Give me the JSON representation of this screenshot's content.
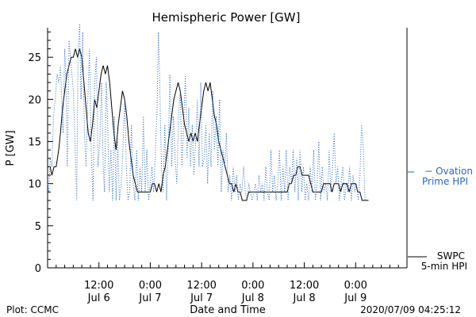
{
  "chart_data": {
    "type": "line",
    "title": "Hemispheric Power [GW]",
    "xlabel": "Date and Time",
    "ylabel": "P [GW]",
    "ylim": [
      0,
      28.5
    ],
    "yticks": [
      0,
      5,
      10,
      15,
      20,
      25
    ],
    "grid": false,
    "x_range_hours": [
      0,
      84
    ],
    "xticks": [
      {
        "hour": 12,
        "time": "12:00",
        "date": "Jul 6"
      },
      {
        "hour": 24,
        "time": "0:00",
        "date": "Jul 7"
      },
      {
        "hour": 36,
        "time": "12:00",
        "date": "Jul 7"
      },
      {
        "hour": 48,
        "time": "0:00",
        "date": "Jul 8"
      },
      {
        "hour": 60,
        "time": "12:00",
        "date": "Jul 8"
      },
      {
        "hour": 72,
        "time": "0:00",
        "date": "Jul 9"
      }
    ],
    "series": [
      {
        "name": "SWPC 5-min HPI",
        "legend_lines": [
          "SWPC",
          "5-min HPI"
        ],
        "color": "#000000",
        "style": "solid",
        "points": [
          [
            0,
            12
          ],
          [
            0.6,
            12
          ],
          [
            1,
            11
          ],
          [
            1.5,
            12
          ],
          [
            2,
            12
          ],
          [
            2.6,
            14
          ],
          [
            3,
            16
          ],
          [
            3.5,
            19
          ],
          [
            4,
            21
          ],
          [
            4.5,
            23
          ],
          [
            5,
            24
          ],
          [
            5.5,
            25
          ],
          [
            6,
            25
          ],
          [
            6.5,
            26
          ],
          [
            7,
            25
          ],
          [
            7.5,
            26
          ],
          [
            8,
            25
          ],
          [
            8.5,
            22
          ],
          [
            9,
            19
          ],
          [
            9.5,
            16
          ],
          [
            10,
            15
          ],
          [
            10.5,
            17
          ],
          [
            11,
            20
          ],
          [
            11.5,
            19
          ],
          [
            12,
            21
          ],
          [
            12.5,
            23
          ],
          [
            13,
            24
          ],
          [
            13.5,
            23
          ],
          [
            14,
            24
          ],
          [
            14.5,
            22
          ],
          [
            15,
            19
          ],
          [
            15.5,
            16
          ],
          [
            16,
            14
          ],
          [
            16.5,
            17
          ],
          [
            17,
            19
          ],
          [
            17.5,
            21
          ],
          [
            18,
            20
          ],
          [
            18.5,
            18
          ],
          [
            19,
            15
          ],
          [
            19.5,
            13
          ],
          [
            20,
            11
          ],
          [
            20.5,
            10
          ],
          [
            21,
            9
          ],
          [
            22,
            9
          ],
          [
            23,
            9
          ],
          [
            24,
            9
          ],
          [
            24.5,
            10
          ],
          [
            25,
            10
          ],
          [
            25.5,
            9
          ],
          [
            26,
            10
          ],
          [
            26.5,
            9
          ],
          [
            27,
            11
          ],
          [
            27.5,
            12
          ],
          [
            28,
            14
          ],
          [
            28.5,
            16
          ],
          [
            29,
            18
          ],
          [
            29.5,
            20
          ],
          [
            30,
            21
          ],
          [
            30.5,
            22
          ],
          [
            31,
            21
          ],
          [
            31.5,
            19
          ],
          [
            32,
            17
          ],
          [
            32.5,
            16
          ],
          [
            33,
            15
          ],
          [
            33.5,
            16
          ],
          [
            34,
            15
          ],
          [
            34.5,
            16
          ],
          [
            35,
            15
          ],
          [
            35.5,
            17
          ],
          [
            36,
            19
          ],
          [
            36.5,
            21
          ],
          [
            37,
            22
          ],
          [
            37.5,
            21
          ],
          [
            38,
            22
          ],
          [
            38.5,
            20
          ],
          [
            39,
            18
          ],
          [
            39.5,
            17
          ],
          [
            40,
            15
          ],
          [
            40.5,
            14
          ],
          [
            41,
            13
          ],
          [
            41.5,
            12
          ],
          [
            42,
            11
          ],
          [
            42.5,
            10
          ],
          [
            43,
            10
          ],
          [
            43.5,
            9
          ],
          [
            44,
            10
          ],
          [
            44.5,
            9
          ],
          [
            45,
            9
          ],
          [
            45.5,
            8
          ],
          [
            46,
            8
          ],
          [
            46.5,
            8
          ],
          [
            47,
            9
          ],
          [
            48,
            9
          ],
          [
            50,
            9
          ],
          [
            52,
            9
          ],
          [
            54,
            9
          ],
          [
            56,
            9
          ],
          [
            56.5,
            10
          ],
          [
            57,
            10
          ],
          [
            57.5,
            11
          ],
          [
            58,
            11
          ],
          [
            58.5,
            12
          ],
          [
            59,
            12
          ],
          [
            59.5,
            11
          ],
          [
            60,
            11
          ],
          [
            61,
            11
          ],
          [
            61.5,
            10
          ],
          [
            62,
            9
          ],
          [
            63,
            9
          ],
          [
            64,
            9
          ],
          [
            64.5,
            10
          ],
          [
            65,
            10
          ],
          [
            66,
            10
          ],
          [
            66.5,
            9
          ],
          [
            67,
            10
          ],
          [
            68,
            10
          ],
          [
            68.5,
            9
          ],
          [
            69,
            10
          ],
          [
            70,
            10
          ],
          [
            70.5,
            9
          ],
          [
            71,
            10
          ],
          [
            72,
            10
          ],
          [
            72.5,
            9
          ],
          [
            73,
            9
          ],
          [
            73.5,
            8
          ],
          [
            75,
            8
          ]
        ]
      },
      {
        "name": "Ovation Prime HPI",
        "legend_lines": [
          "− Ovation",
          "Prime HPI"
        ],
        "color": "#2a66c9",
        "style": "dotted",
        "points": [
          [
            0,
            10
          ],
          [
            0.3,
            9
          ],
          [
            0.6,
            13
          ],
          [
            1,
            12
          ],
          [
            1.4,
            18
          ],
          [
            1.8,
            20
          ],
          [
            2.2,
            23
          ],
          [
            2.6,
            22
          ],
          [
            3,
            24
          ],
          [
            3.3,
            20
          ],
          [
            3.6,
            16
          ],
          [
            4,
            26
          ],
          [
            4.3,
            22
          ],
          [
            4.6,
            12
          ],
          [
            5,
            27
          ],
          [
            5.5,
            24
          ],
          [
            6,
            21
          ],
          [
            6.4,
            15
          ],
          [
            6.8,
            8
          ],
          [
            7.1,
            25
          ],
          [
            7.5,
            29
          ],
          [
            7.8,
            20
          ],
          [
            8.2,
            28
          ],
          [
            8.6,
            16
          ],
          [
            9,
            12
          ],
          [
            9.4,
            20
          ],
          [
            9.8,
            26
          ],
          [
            10.2,
            14
          ],
          [
            10.6,
            8
          ],
          [
            11,
            22
          ],
          [
            11.4,
            25
          ],
          [
            11.8,
            12
          ],
          [
            12.2,
            15
          ],
          [
            12.6,
            22
          ],
          [
            13,
            12
          ],
          [
            13.3,
            9
          ],
          [
            13.7,
            22
          ],
          [
            14,
            18
          ],
          [
            14.4,
            9
          ],
          [
            14.8,
            14
          ],
          [
            15.2,
            8
          ],
          [
            15.6,
            18
          ],
          [
            16,
            8
          ],
          [
            16.4,
            15
          ],
          [
            16.8,
            8
          ],
          [
            17.2,
            10
          ],
          [
            17.6,
            14
          ],
          [
            18,
            20
          ],
          [
            18.4,
            12
          ],
          [
            18.8,
            8
          ],
          [
            19.2,
            9
          ],
          [
            19.6,
            17
          ],
          [
            20,
            10
          ],
          [
            20.4,
            8
          ],
          [
            20.8,
            14
          ],
          [
            21.2,
            8
          ],
          [
            21.6,
            12
          ],
          [
            22,
            9
          ],
          [
            22.4,
            18
          ],
          [
            22.8,
            9
          ],
          [
            23.2,
            14
          ],
          [
            23.6,
            8
          ],
          [
            24,
            10
          ],
          [
            24.4,
            12
          ],
          [
            24.8,
            9
          ],
          [
            25.2,
            14
          ],
          [
            25.6,
            19
          ],
          [
            25.9,
            28
          ],
          [
            26.2,
            22
          ],
          [
            26.6,
            12
          ],
          [
            27,
            9
          ],
          [
            27.4,
            17
          ],
          [
            27.8,
            8
          ],
          [
            28.2,
            14
          ],
          [
            28.6,
            23
          ],
          [
            29,
            12
          ],
          [
            29.4,
            18
          ],
          [
            29.8,
            13
          ],
          [
            30.2,
            10
          ],
          [
            30.6,
            18
          ],
          [
            31,
            21
          ],
          [
            31.4,
            12
          ],
          [
            31.8,
            17
          ],
          [
            32.2,
            23
          ],
          [
            32.6,
            13
          ],
          [
            33,
            19
          ],
          [
            33.4,
            12
          ],
          [
            33.8,
            17
          ],
          [
            34.2,
            11
          ],
          [
            34.6,
            15
          ],
          [
            35,
            20
          ],
          [
            35.4,
            12
          ],
          [
            35.8,
            22
          ],
          [
            36.2,
            12
          ],
          [
            36.6,
            13
          ],
          [
            37,
            17
          ],
          [
            37.4,
            10
          ],
          [
            37.8,
            16
          ],
          [
            38.2,
            12
          ],
          [
            38.6,
            21
          ],
          [
            39,
            14
          ],
          [
            39.4,
            18
          ],
          [
            39.8,
            12
          ],
          [
            40.2,
            20
          ],
          [
            40.6,
            9
          ],
          [
            41,
            14
          ],
          [
            41.4,
            12
          ],
          [
            41.8,
            16
          ],
          [
            42.2,
            9
          ],
          [
            42.6,
            11
          ],
          [
            43,
            8
          ],
          [
            43.4,
            12
          ],
          [
            43.8,
            9
          ],
          [
            44.2,
            11
          ],
          [
            44.6,
            8
          ],
          [
            45,
            10
          ],
          [
            45.4,
            9
          ],
          [
            45.8,
            12
          ],
          [
            46.2,
            9
          ],
          [
            46.6,
            8
          ],
          [
            47,
            10
          ],
          [
            47.4,
            9
          ],
          [
            47.8,
            8
          ],
          [
            48.2,
            9
          ],
          [
            48.6,
            10
          ],
          [
            49,
            8
          ],
          [
            49.4,
            11
          ],
          [
            49.8,
            9
          ],
          [
            50.2,
            10
          ],
          [
            50.6,
            8
          ],
          [
            51,
            12
          ],
          [
            51.4,
            9
          ],
          [
            51.8,
            8
          ],
          [
            52.2,
            14
          ],
          [
            52.6,
            9
          ],
          [
            53,
            11
          ],
          [
            53.4,
            8
          ],
          [
            53.8,
            10
          ],
          [
            54.2,
            14
          ],
          [
            54.6,
            8
          ],
          [
            55,
            12
          ],
          [
            55.4,
            9
          ],
          [
            55.8,
            14
          ],
          [
            56.2,
            8
          ],
          [
            56.6,
            12
          ],
          [
            57,
            10
          ],
          [
            57.4,
            14
          ],
          [
            57.8,
            9
          ],
          [
            58.2,
            13
          ],
          [
            58.6,
            8
          ],
          [
            59,
            14
          ],
          [
            59.4,
            9
          ],
          [
            59.8,
            12
          ],
          [
            60.2,
            8
          ],
          [
            60.6,
            10
          ],
          [
            61,
            8
          ],
          [
            61.4,
            12
          ],
          [
            61.8,
            9
          ],
          [
            62.2,
            14
          ],
          [
            62.6,
            8
          ],
          [
            63,
            10
          ],
          [
            63.4,
            15
          ],
          [
            63.8,
            8
          ],
          [
            64.2,
            12
          ],
          [
            64.6,
            9
          ],
          [
            65,
            10
          ],
          [
            65.4,
            8
          ],
          [
            65.8,
            14
          ],
          [
            66.2,
            9
          ],
          [
            66.6,
            12
          ],
          [
            67,
            16
          ],
          [
            67.4,
            10
          ],
          [
            67.8,
            12
          ],
          [
            68.2,
            8
          ],
          [
            68.6,
            10
          ],
          [
            69,
            12
          ],
          [
            69.4,
            8
          ],
          [
            69.8,
            10
          ],
          [
            70.2,
            9
          ],
          [
            70.6,
            12
          ],
          [
            71,
            8
          ],
          [
            71.4,
            11
          ],
          [
            71.8,
            9
          ],
          [
            72.2,
            10
          ],
          [
            72.6,
            8
          ],
          [
            73,
            11
          ],
          [
            73.4,
            17
          ],
          [
            73.8,
            14
          ],
          [
            74.2,
            8
          ],
          [
            74.5,
            8
          ]
        ]
      }
    ]
  },
  "footer": {
    "left": "Plot: CCMC",
    "right": "2020/07/09 04:25:12"
  }
}
